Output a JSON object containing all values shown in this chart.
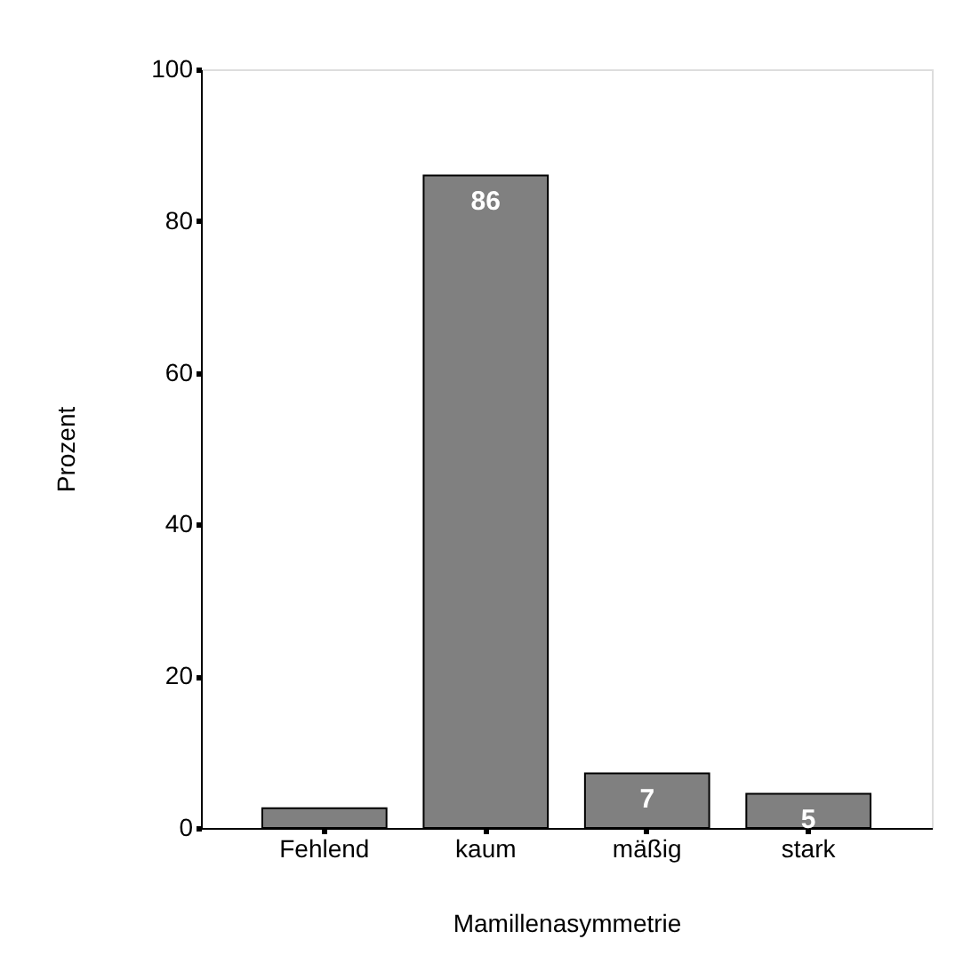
{
  "chart_data": {
    "type": "bar",
    "xlabel": "Mamillenasymmetrie",
    "ylabel": "Prozent",
    "categories": [
      "Fehlend",
      "kaum",
      "mäßig",
      "stark"
    ],
    "values": [
      2.6,
      86,
      7.2,
      4.5
    ],
    "value_labels": [
      null,
      "86",
      "7",
      "5"
    ],
    "color": "#808080",
    "ylim": [
      0,
      100
    ],
    "yticks": [
      0,
      20,
      40,
      60,
      80,
      100
    ],
    "grid": false
  }
}
